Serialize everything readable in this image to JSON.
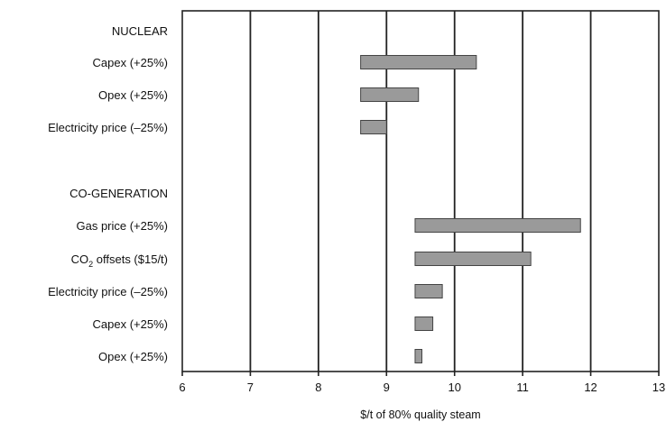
{
  "chart_data": {
    "type": "bar",
    "orientation": "horizontal",
    "xlabel": "$/t of 80% quality steam",
    "xlim": [
      6,
      13
    ],
    "xticks": [
      6,
      7,
      8,
      9,
      10,
      11,
      12,
      13
    ],
    "grid": true,
    "groups": [
      {
        "name": "NUCLEAR",
        "bars": [
          {
            "label": "Capex (+25%)",
            "start": 8.62,
            "end": 10.32
          },
          {
            "label": "Opex (+25%)",
            "start": 8.62,
            "end": 9.47
          },
          {
            "label": "Electricity price (–25%)",
            "start": 8.62,
            "end": 9.0
          }
        ]
      },
      {
        "name": "CO-GENERATION",
        "bars": [
          {
            "label": "Gas price (+25%)",
            "start": 9.42,
            "end": 11.85
          },
          {
            "label_parts": [
              "CO",
              "2",
              " offsets ($15/t)"
            ],
            "start": 9.42,
            "end": 11.12
          },
          {
            "label": "Electricity price (–25%)",
            "start": 9.42,
            "end": 9.82
          },
          {
            "label": "Capex (+25%)",
            "start": 9.42,
            "end": 9.68
          },
          {
            "label": "Opex (+25%)",
            "start": 9.42,
            "end": 9.52
          }
        ]
      }
    ]
  }
}
